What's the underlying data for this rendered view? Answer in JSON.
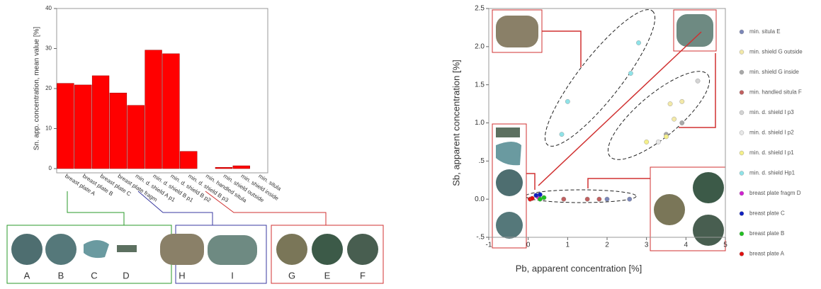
{
  "chart_data": [
    {
      "type": "bar",
      "y_label": "Sn. app. concentration, mean value [%]",
      "categories": [
        "breast plate A",
        "breast plate B",
        "breast plate C",
        "breast plate fragm",
        "min. d. shield A p1",
        "min. d. shield B p1",
        "min. d. shield B p2",
        "min. d. shield B p3",
        "min. handled situla",
        "min. shield outside",
        "min. shield inside",
        "min. situla"
      ],
      "values": [
        21.3,
        20.9,
        23.2,
        18.9,
        15.8,
        29.6,
        28.7,
        4.3,
        0,
        0.3,
        0.7,
        0
      ],
      "color": "#ff0000",
      "ylim": [
        0,
        40
      ],
      "yticks": [
        0,
        10,
        20,
        30,
        40
      ],
      "grid": false
    },
    {
      "type": "scatter",
      "x_label": "Pb, apparent concentration [%]",
      "y_label": "Sb, apparent concentration [%]",
      "xlim": [
        -1,
        5
      ],
      "xticks": [
        -1,
        0,
        1,
        2,
        3,
        4,
        5
      ],
      "ylim": [
        -0.5,
        2.5
      ],
      "yticks": [
        {
          "value": -0.5,
          "label": "-.5"
        },
        {
          "value": 0,
          "label": "0.0"
        },
        {
          "value": 0.5,
          "label": ".5"
        },
        {
          "value": 1,
          "label": "1.0"
        },
        1.5,
        {
          "value": 2,
          "label": "2.0"
        },
        2.5
      ],
      "legend": "right",
      "series": [
        {
          "name": "min. situla E",
          "color": "#7b86b8",
          "x": [
            2.57,
            2.0
          ],
          "y": [
            0.0,
            0.0
          ]
        },
        {
          "name": "min. shield  G outside",
          "color": "#f3e9a8",
          "x": [
            3.6,
            3.9,
            3.7
          ],
          "y": [
            1.25,
            1.28,
            1.05
          ]
        },
        {
          "name": "min. shield  G inside",
          "color": "#a8a8a8",
          "x": [
            3.5,
            3.9
          ],
          "y": [
            0.85,
            1.0
          ]
        },
        {
          "name": "min. handled situla  F",
          "color": "#c06060",
          "x": [
            0.9,
            1.5,
            1.8
          ],
          "y": [
            0.0,
            0.0,
            0.0
          ]
        },
        {
          "name": "min. d. shield  I p3",
          "color": "#d4d4d4",
          "x": [
            4.3
          ],
          "y": [
            1.55
          ]
        },
        {
          "name": "min. d. shield  I p2",
          "color": "#e8e8e8",
          "x": [
            3.3
          ],
          "y": [
            0.75
          ]
        },
        {
          "name": "min. d. shield  I p1",
          "color": "#f5f08a",
          "x": [
            3.0,
            3.5
          ],
          "y": [
            0.75,
            0.82
          ]
        },
        {
          "name": "min. d. shield Hp1",
          "color": "#8fe3e8",
          "x": [
            0.85,
            1.0,
            2.6,
            2.8
          ],
          "y": [
            0.85,
            1.28,
            1.65,
            2.05
          ]
        },
        {
          "name": "breast plate fragm  D",
          "color": "#d020d0",
          "x": [
            0.25
          ],
          "y": [
            0.03
          ]
        },
        {
          "name": "breast plate C",
          "color": "#1020c0",
          "x": [
            0.2,
            0.3
          ],
          "y": [
            0.05,
            0.06
          ]
        },
        {
          "name": "breast plate B",
          "color": "#20c020",
          "x": [
            0.3,
            0.4
          ],
          "y": [
            0.0,
            0.02
          ]
        },
        {
          "name": "breast plate A",
          "color": "#e01010",
          "x": [
            0.05,
            0.1
          ],
          "y": [
            0.0,
            0.01
          ]
        }
      ]
    }
  ],
  "photo_groups": [
    [
      "A",
      "B",
      "C",
      "D"
    ],
    [
      "H",
      "I"
    ],
    [
      "G",
      "E",
      "F"
    ]
  ]
}
